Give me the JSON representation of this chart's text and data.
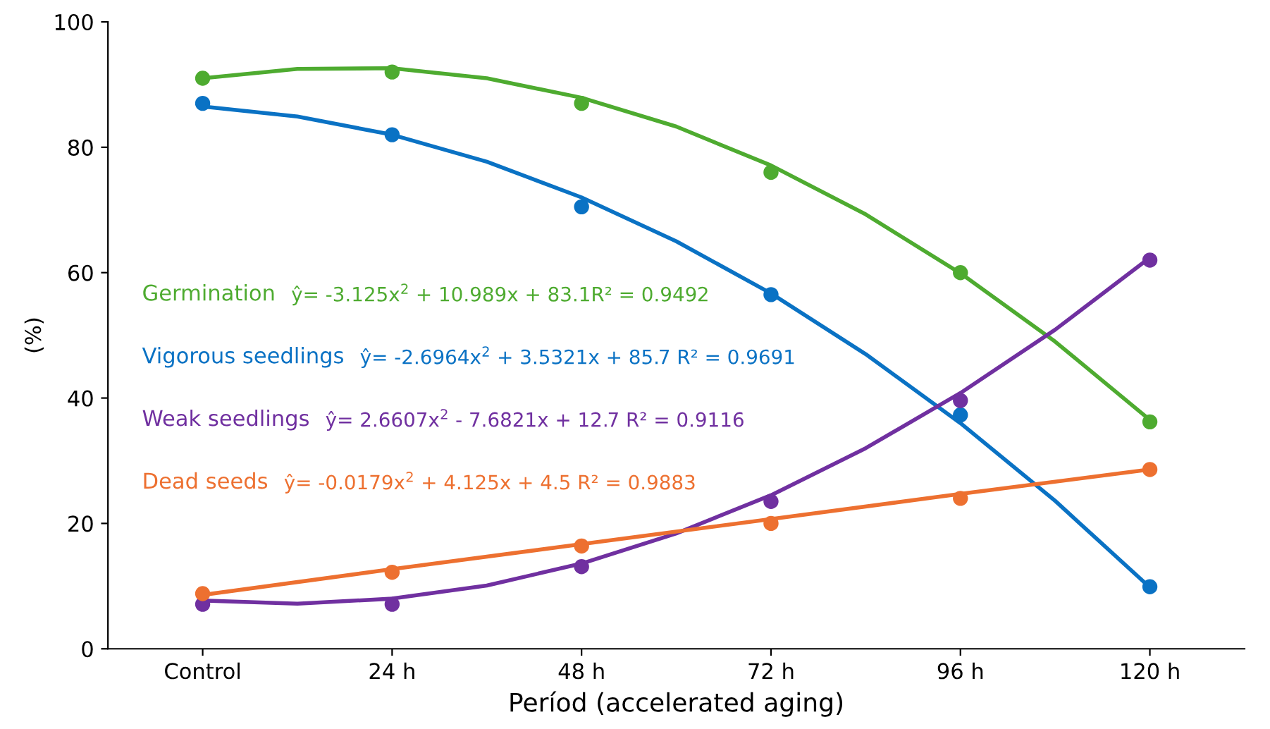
{
  "chart_data": {
    "type": "scatter",
    "xlabel": "Períod (accelerated aging)",
    "ylabel": "(%)",
    "x": [
      0,
      24,
      48,
      72,
      96,
      120
    ],
    "series": [
      {
        "name": "Germination",
        "color": "#4eab30",
        "values": [
          91,
          92,
          87,
          76,
          60,
          36.2
        ]
      },
      {
        "name": "Vigorous seedlings",
        "color": "#0a72c4",
        "values": [
          87,
          82,
          70.5,
          56.5,
          37.3,
          9.9
        ]
      },
      {
        "name": "Weak seedlings",
        "color": "#7030a0",
        "values": [
          7.1,
          7.1,
          13.1,
          23.5,
          39.6,
          62
        ]
      },
      {
        "name": "Dead seeds",
        "color": "#ed7030",
        "values": [
          8.8,
          12.2,
          16.4,
          20,
          24,
          28.6
        ]
      },
      {
        "type": "line",
        "marker": "none",
        "color": "#4eab30",
        "x": [
          0,
          12,
          24,
          36,
          48,
          60,
          72,
          84,
          96,
          108,
          120
        ],
        "values": [
          91.0,
          92.5,
          92.6,
          91.0,
          87.9,
          83.3,
          77.1,
          69.3,
          59.9,
          49.0,
          36.5
        ]
      },
      {
        "type": "line",
        "marker": "none",
        "color": "#0a72c4",
        "x": [
          0,
          12,
          24,
          36,
          48,
          60,
          72,
          84,
          96,
          108,
          120
        ],
        "values": [
          86.5,
          84.9,
          82.0,
          77.7,
          72.0,
          65.0,
          56.7,
          47.0,
          36.0,
          23.6,
          9.8
        ]
      },
      {
        "type": "line",
        "marker": "none",
        "color": "#7030a0",
        "x": [
          0,
          12,
          24,
          36,
          48,
          60,
          72,
          84,
          96,
          108,
          120
        ],
        "values": [
          7.7,
          7.2,
          8.0,
          10.1,
          13.6,
          18.4,
          24.5,
          32.0,
          40.8,
          50.9,
          62.4
        ]
      },
      {
        "type": "line",
        "marker": "none",
        "color": "#ed7030",
        "x": [
          0,
          24,
          48,
          72,
          96,
          120
        ],
        "values": [
          8.6,
          12.7,
          16.7,
          20.7,
          24.7,
          28.6
        ]
      }
    ],
    "annotations": [
      "ŷ= -3.125x$^{2}$ + 10.989x + 83.1R² = 0.9492",
      "ŷ= -2.6964x$^{2}$ + 3.5321x + 85.7 R² = 0.9691",
      "ŷ= 2.6607x$^{2}$ - 7.6821x + 12.7 R² = 0.9116",
      "ŷ= -0.0179x$^{2}$ + 4.125x + 4.5 R² = 0.9883"
    ],
    "xlim": [
      -12,
      132
    ],
    "xticks": [
      {
        "value": 0,
        "label": "Control"
      },
      {
        "value": 24,
        "label": "24 h"
      },
      {
        "value": 48,
        "label": "48 h"
      },
      {
        "value": 72,
        "label": "72 h"
      },
      {
        "value": 96,
        "label": "96 h"
      },
      {
        "value": 120,
        "label": "120 h"
      }
    ],
    "ylim": [
      0,
      100
    ],
    "yticks": [
      0,
      20,
      40,
      60,
      80,
      100
    ],
    "grid": false,
    "legend": false,
    "marker": "circle",
    "line_style": "solid"
  }
}
